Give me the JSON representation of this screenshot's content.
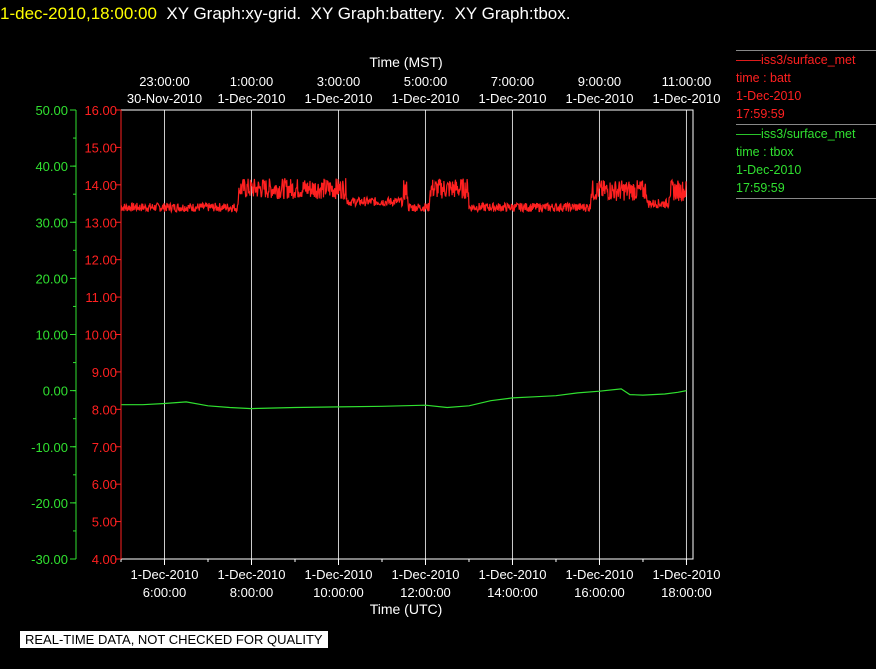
{
  "header": {
    "timestamp": "1-dec-2010,18:00:00",
    "titles": [
      "XY Graph:xy-grid.",
      "XY Graph:battery.",
      "XY Graph:tbox."
    ]
  },
  "legend": [
    {
      "station": "iss3/surface_met",
      "var": "time : batt",
      "date": "1-Dec-2010",
      "time": "17:59:59",
      "color": "#ff2020"
    },
    {
      "station": "iss3/surface_met",
      "var": "time : tbox",
      "date": "1-Dec-2010",
      "time": "17:59:59",
      "color": "#30e030"
    }
  ],
  "footer": {
    "quality_note": "REAL-TIME DATA, NOT CHECKED FOR QUALITY"
  },
  "chart_data": {
    "type": "line",
    "xlabel_bottom": "Time (UTC)",
    "xlabel_top": "Time (MST)",
    "xlim_hours_utc": [
      5.0,
      18.15
    ],
    "bottom_ticks": [
      {
        "h": 6,
        "date": "1-Dec-2010",
        "time": "6:00:00"
      },
      {
        "h": 8,
        "date": "1-Dec-2010",
        "time": "8:00:00"
      },
      {
        "h": 10,
        "date": "1-Dec-2010",
        "time": "10:00:00"
      },
      {
        "h": 12,
        "date": "1-Dec-2010",
        "time": "12:00:00"
      },
      {
        "h": 14,
        "date": "1-Dec-2010",
        "time": "14:00:00"
      },
      {
        "h": 16,
        "date": "1-Dec-2010",
        "time": "16:00:00"
      },
      {
        "h": 18,
        "date": "1-Dec-2010",
        "time": "18:00:00"
      }
    ],
    "top_ticks": [
      {
        "h": 6,
        "time": "23:00:00",
        "date": "30-Nov-2010"
      },
      {
        "h": 8,
        "time": "1:00:00",
        "date": "1-Dec-2010"
      },
      {
        "h": 10,
        "time": "3:00:00",
        "date": "1-Dec-2010"
      },
      {
        "h": 12,
        "time": "5:00:00",
        "date": "1-Dec-2010"
      },
      {
        "h": 14,
        "time": "7:00:00",
        "date": "1-Dec-2010"
      },
      {
        "h": 16,
        "time": "9:00:00",
        "date": "1-Dec-2010"
      },
      {
        "h": 18,
        "time": "11:00:00",
        "date": "1-Dec-2010"
      }
    ],
    "grid_vertical": true,
    "left_axis": {
      "color": "#30e030",
      "ylim": [
        -30,
        50
      ],
      "ticks": [
        "50.00",
        "40.00",
        "30.00",
        "20.00",
        "10.00",
        "0.00",
        "-10.00",
        "-20.00",
        "-30.00"
      ]
    },
    "right_axis": {
      "color": "#ff2020",
      "ylim": [
        4,
        16
      ],
      "ticks": [
        "16.00",
        "15.00",
        "14.00",
        "13.00",
        "12.00",
        "11.00",
        "10.00",
        "9.00",
        "8.00",
        "7.00",
        "6.00",
        "5.00",
        "4.00"
      ]
    },
    "series": [
      {
        "name": "batt",
        "axis": "right",
        "color": "#ff2020",
        "x": [
          5.0,
          7.6,
          7.7,
          10.1,
          10.2,
          11.5,
          11.6,
          12.0,
          12.1,
          12.9,
          13.0,
          15.7,
          15.8,
          17.0,
          17.1,
          17.5,
          17.6,
          18.0
        ],
        "y": [
          13.4,
          13.4,
          13.9,
          13.9,
          13.55,
          13.85,
          13.4,
          13.4,
          13.9,
          13.9,
          13.4,
          13.4,
          13.85,
          13.85,
          13.5,
          13.5,
          13.85,
          13.85
        ]
      },
      {
        "name": "tbox",
        "axis": "left",
        "color": "#30e030",
        "x": [
          5.0,
          5.5,
          6.0,
          6.5,
          7.0,
          7.5,
          8.0,
          9.0,
          10.0,
          11.0,
          12.0,
          12.5,
          13.0,
          13.5,
          14.0,
          14.5,
          15.0,
          15.5,
          16.0,
          16.5,
          16.7,
          17.0,
          17.5,
          17.8,
          18.0
        ],
        "y": [
          -2.5,
          -2.5,
          -2.3,
          -2.0,
          -2.7,
          -3.0,
          -3.2,
          -3.0,
          -2.9,
          -2.8,
          -2.6,
          -3.0,
          -2.7,
          -1.8,
          -1.3,
          -1.1,
          -0.9,
          -0.4,
          -0.1,
          0.3,
          -0.7,
          -0.8,
          -0.6,
          -0.3,
          0.0
        ]
      }
    ]
  }
}
